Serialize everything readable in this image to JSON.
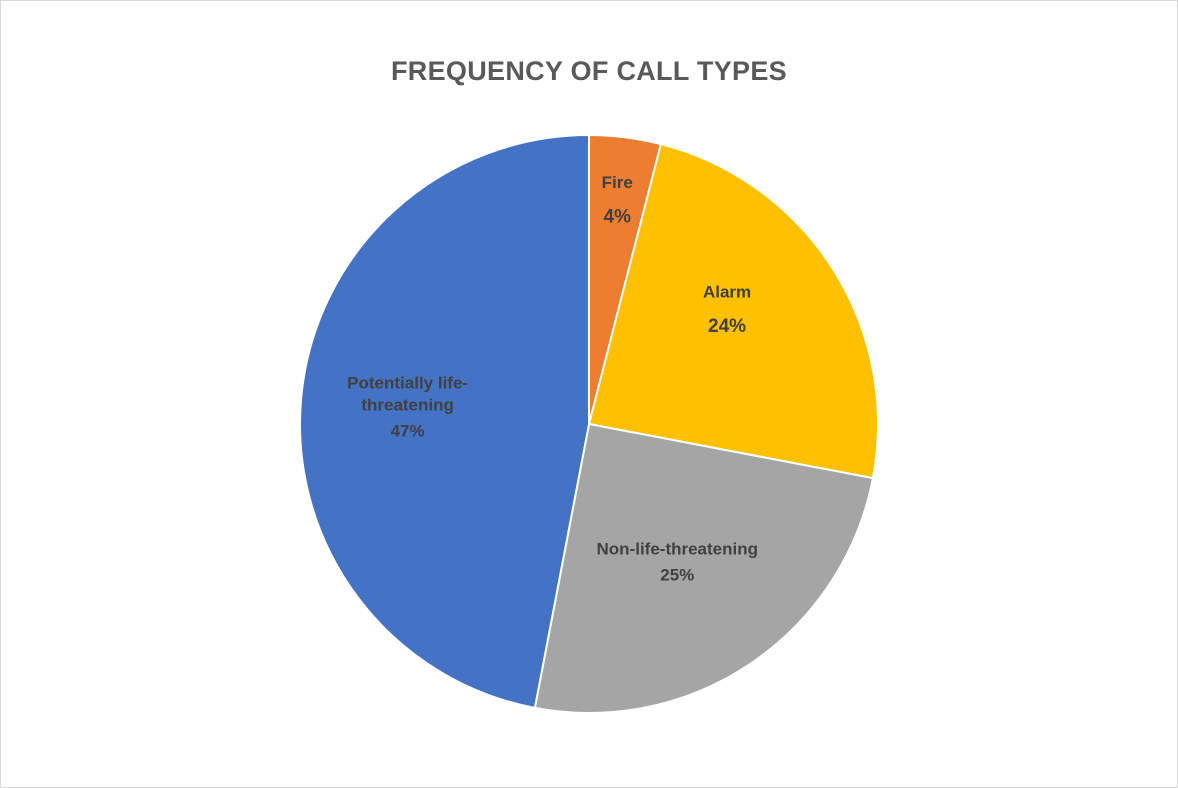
{
  "chart_data": {
    "type": "pie",
    "title": "FREQUENCY OF CALL TYPES",
    "start_angle_deg": 0,
    "direction": "clockwise",
    "slices": [
      {
        "id": "fire",
        "label_lines": [
          "Fire"
        ],
        "percent_label": "4%",
        "value": 4,
        "color": "#ED7D31",
        "label_size": "normal",
        "percent_size": "large"
      },
      {
        "id": "alarm",
        "label_lines": [
          "Alarm"
        ],
        "percent_label": "24%",
        "value": 24,
        "color": "#FFC000",
        "label_size": "normal",
        "percent_size": "large"
      },
      {
        "id": "non-life-threatening",
        "label_lines": [
          "Non-life-threatening"
        ],
        "percent_label": "25%",
        "value": 25,
        "color": "#A5A5A5",
        "label_size": "normal",
        "percent_size": "normal"
      },
      {
        "id": "potentially-life-threatening",
        "label_lines": [
          "Potentially life-",
          "threatening"
        ],
        "percent_label": "47%",
        "value": 47,
        "color": "#4472C4",
        "label_size": "normal",
        "percent_size": "normal"
      }
    ]
  }
}
